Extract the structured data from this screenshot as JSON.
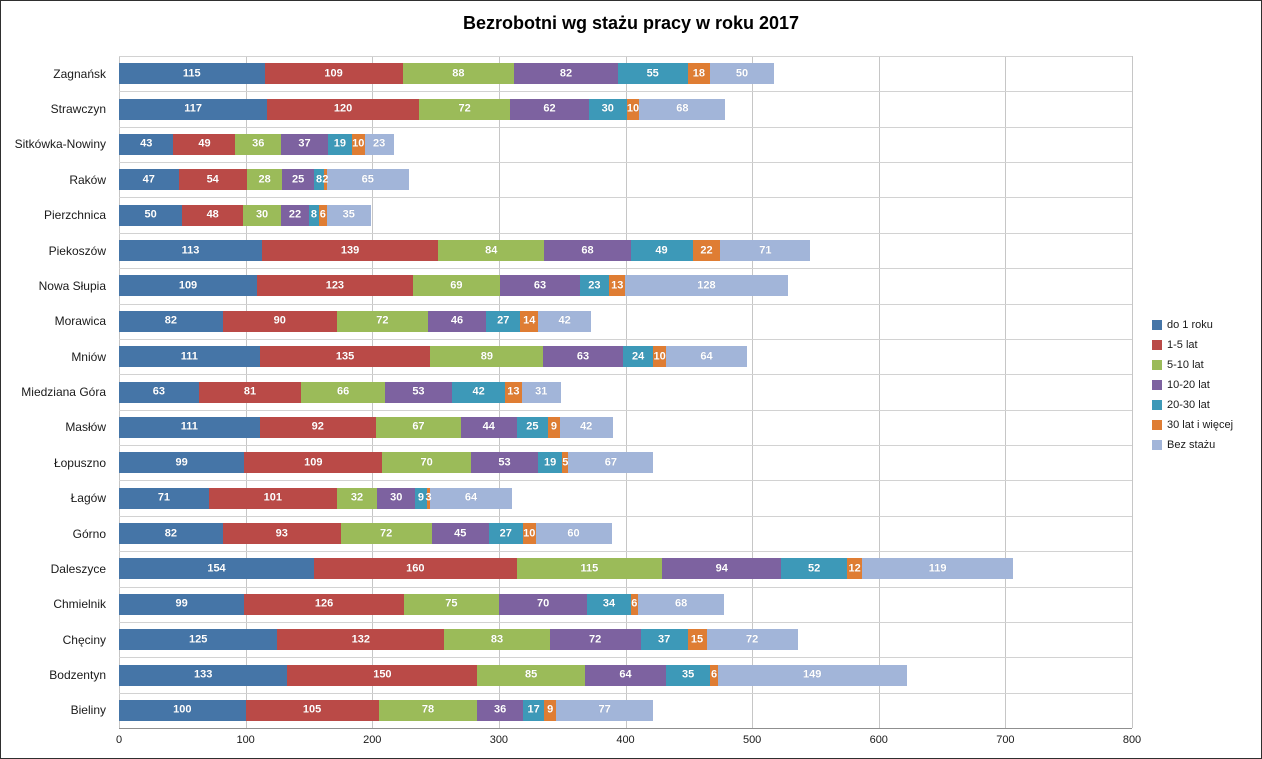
{
  "chart_data": {
    "type": "bar",
    "orientation": "horizontal",
    "stacked": true,
    "title": "Bezrobotni wg stażu pracy w roku 2017",
    "categories": [
      "Zagnańsk",
      "Strawczyn",
      "Sitkówka-Nowiny",
      "Raków",
      "Pierzchnica",
      "Piekoszów",
      "Nowa Słupia",
      "Morawica",
      "Mniów",
      "Miedziana Góra",
      "Masłów",
      "Łopuszno",
      "Łagów",
      "Górno",
      "Daleszyce",
      "Chmielnik",
      "Chęciny",
      "Bodzentyn",
      "Bieliny"
    ],
    "series": [
      {
        "name": "do 1 roku",
        "color": "#4575A7",
        "values": [
          115,
          117,
          43,
          47,
          50,
          113,
          109,
          82,
          111,
          63,
          111,
          99,
          71,
          82,
          154,
          99,
          125,
          133,
          100
        ]
      },
      {
        "name": "1-5 lat",
        "color": "#BA4A47",
        "values": [
          109,
          120,
          49,
          54,
          48,
          139,
          123,
          90,
          135,
          81,
          92,
          109,
          101,
          93,
          160,
          126,
          132,
          150,
          105
        ]
      },
      {
        "name": "5-10 lat",
        "color": "#9BBB59",
        "values": [
          88,
          72,
          36,
          28,
          30,
          84,
          69,
          72,
          89,
          66,
          67,
          70,
          32,
          72,
          115,
          75,
          83,
          85,
          78
        ]
      },
      {
        "name": "10-20 lat",
        "color": "#7D62A0",
        "values": [
          82,
          62,
          37,
          25,
          22,
          68,
          63,
          46,
          63,
          53,
          44,
          53,
          30,
          45,
          94,
          70,
          72,
          64,
          36
        ]
      },
      {
        "name": "20-30 lat",
        "color": "#3D99B8",
        "values": [
          55,
          30,
          19,
          8,
          8,
          49,
          23,
          27,
          24,
          42,
          25,
          19,
          9,
          27,
          52,
          34,
          37,
          35,
          17
        ]
      },
      {
        "name": "30 lat i więcej",
        "color": "#DF7D33",
        "values": [
          18,
          10,
          10,
          2,
          6,
          22,
          13,
          14,
          10,
          13,
          9,
          5,
          3,
          10,
          12,
          6,
          15,
          6,
          9
        ]
      },
      {
        "name": "Bez stażu",
        "color": "#A2B5D9",
        "values": [
          50,
          68,
          23,
          65,
          35,
          71,
          128,
          42,
          64,
          31,
          42,
          67,
          64,
          60,
          119,
          68,
          72,
          149,
          77
        ]
      }
    ],
    "x_axis": {
      "ticks": [
        0,
        100,
        200,
        300,
        400,
        500,
        600,
        700,
        800
      ],
      "max": 800
    },
    "ylabel": "",
    "xlabel": "",
    "grid": true,
    "legend_position": "right",
    "grid_color": "#c6c6c6",
    "axis_color": "#8f8f8f",
    "label_color": "#ffffff"
  }
}
